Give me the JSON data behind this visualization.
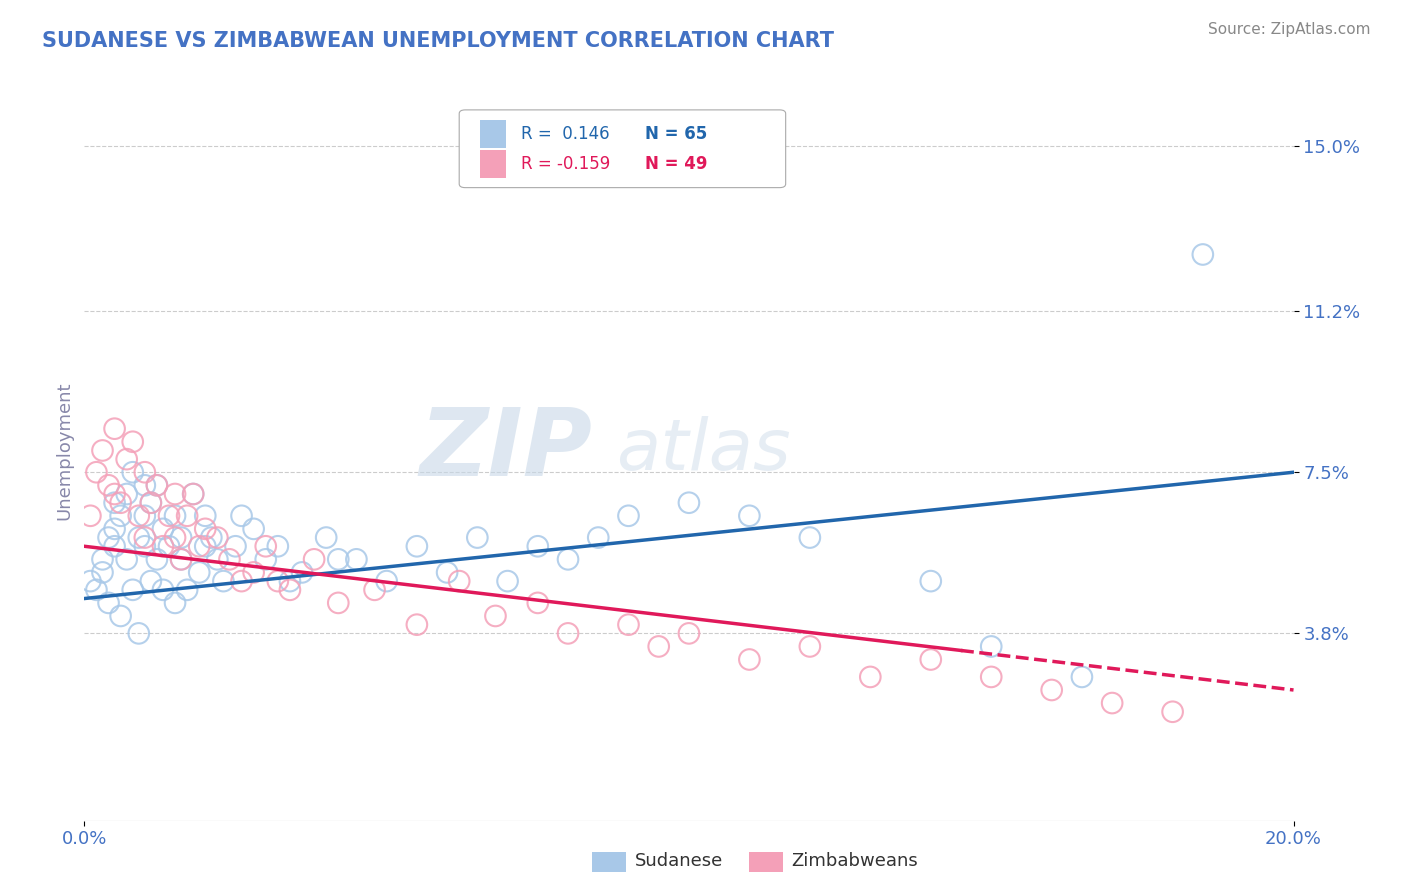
{
  "title": "SUDANESE VS ZIMBABWEAN UNEMPLOYMENT CORRELATION CHART",
  "source_text": "Source: ZipAtlas.com",
  "ylabel": "Unemployment",
  "xlim": [
    0.0,
    0.2
  ],
  "ylim": [
    -0.005,
    0.165
  ],
  "yticks": [
    0.038,
    0.075,
    0.112,
    0.15
  ],
  "ytick_labels": [
    "3.8%",
    "7.5%",
    "11.2%",
    "15.0%"
  ],
  "xticks": [
    0.0,
    0.2
  ],
  "xtick_labels": [
    "0.0%",
    "20.0%"
  ],
  "legend_r1": "R =  0.146",
  "legend_n1": "N = 65",
  "legend_r2": "R = -0.159",
  "legend_n2": "N = 49",
  "label1": "Sudanese",
  "label2": "Zimbabweans",
  "color1": "#a8c8e8",
  "color2": "#f4a0b8",
  "trend_color1": "#2166ac",
  "trend_color2": "#e0195a",
  "watermark_zip": "ZIP",
  "watermark_atlas": "atlas",
  "background_color": "#ffffff",
  "grid_color": "#cccccc",
  "title_color": "#4472c4",
  "axis_label_color": "#8888aa",
  "tick_label_color": "#4472c4",
  "source_color": "#888888",
  "sudanese_x": [
    0.001,
    0.002,
    0.003,
    0.003,
    0.004,
    0.004,
    0.005,
    0.005,
    0.005,
    0.006,
    0.006,
    0.007,
    0.007,
    0.008,
    0.008,
    0.009,
    0.009,
    0.01,
    0.01,
    0.01,
    0.011,
    0.011,
    0.012,
    0.012,
    0.013,
    0.013,
    0.014,
    0.015,
    0.015,
    0.016,
    0.016,
    0.017,
    0.018,
    0.019,
    0.02,
    0.02,
    0.021,
    0.022,
    0.023,
    0.025,
    0.026,
    0.028,
    0.03,
    0.032,
    0.034,
    0.036,
    0.04,
    0.042,
    0.045,
    0.05,
    0.055,
    0.06,
    0.065,
    0.07,
    0.075,
    0.08,
    0.085,
    0.09,
    0.1,
    0.11,
    0.12,
    0.14,
    0.15,
    0.165,
    0.185
  ],
  "sudanese_y": [
    0.05,
    0.048,
    0.052,
    0.055,
    0.06,
    0.045,
    0.062,
    0.068,
    0.058,
    0.065,
    0.042,
    0.07,
    0.055,
    0.075,
    0.048,
    0.06,
    0.038,
    0.058,
    0.065,
    0.072,
    0.05,
    0.068,
    0.055,
    0.072,
    0.048,
    0.062,
    0.058,
    0.045,
    0.065,
    0.055,
    0.06,
    0.048,
    0.07,
    0.052,
    0.065,
    0.058,
    0.06,
    0.055,
    0.05,
    0.058,
    0.065,
    0.062,
    0.055,
    0.058,
    0.05,
    0.052,
    0.06,
    0.055,
    0.055,
    0.05,
    0.058,
    0.052,
    0.06,
    0.05,
    0.058,
    0.055,
    0.06,
    0.065,
    0.068,
    0.065,
    0.06,
    0.05,
    0.035,
    0.028,
    0.125
  ],
  "zimbabwean_x": [
    0.001,
    0.002,
    0.003,
    0.004,
    0.005,
    0.005,
    0.006,
    0.007,
    0.008,
    0.009,
    0.01,
    0.01,
    0.011,
    0.012,
    0.013,
    0.014,
    0.015,
    0.015,
    0.016,
    0.017,
    0.018,
    0.019,
    0.02,
    0.022,
    0.024,
    0.026,
    0.028,
    0.03,
    0.032,
    0.034,
    0.038,
    0.042,
    0.048,
    0.055,
    0.062,
    0.068,
    0.075,
    0.08,
    0.09,
    0.095,
    0.1,
    0.11,
    0.12,
    0.13,
    0.14,
    0.15,
    0.16,
    0.17,
    0.18
  ],
  "zimbabwean_y": [
    0.065,
    0.075,
    0.08,
    0.072,
    0.07,
    0.085,
    0.068,
    0.078,
    0.082,
    0.065,
    0.06,
    0.075,
    0.068,
    0.072,
    0.058,
    0.065,
    0.07,
    0.06,
    0.055,
    0.065,
    0.07,
    0.058,
    0.062,
    0.06,
    0.055,
    0.05,
    0.052,
    0.058,
    0.05,
    0.048,
    0.055,
    0.045,
    0.048,
    0.04,
    0.05,
    0.042,
    0.045,
    0.038,
    0.04,
    0.035,
    0.038,
    0.032,
    0.035,
    0.028,
    0.032,
    0.028,
    0.025,
    0.022,
    0.02
  ],
  "trend1_x0": 0.0,
  "trend1_y0": 0.046,
  "trend1_x1": 0.2,
  "trend1_y1": 0.075,
  "trend2_x0": 0.0,
  "trend2_y0": 0.058,
  "trend2_x1": 0.2,
  "trend2_y1": 0.025,
  "trend2_solid_end": 0.145
}
